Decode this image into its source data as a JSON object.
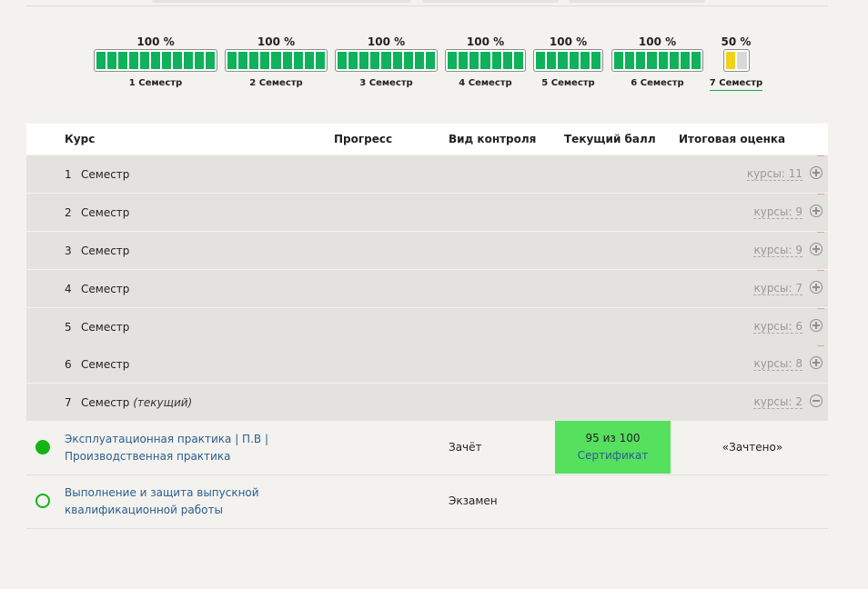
{
  "semesters": [
    {
      "pct": "100 %",
      "label": "1 Семестр",
      "segments": 11,
      "filled": 11,
      "half": 0
    },
    {
      "pct": "100 %",
      "label": "2 Семестр",
      "segments": 9,
      "filled": 9,
      "half": 0
    },
    {
      "pct": "100 %",
      "label": "3 Семестр",
      "segments": 9,
      "filled": 9,
      "half": 0
    },
    {
      "pct": "100 %",
      "label": "4 Семестр",
      "segments": 7,
      "filled": 7,
      "half": 0
    },
    {
      "pct": "100 %",
      "label": "5 Семестр",
      "segments": 6,
      "filled": 6,
      "half": 0
    },
    {
      "pct": "100 %",
      "label": "6 Семестр",
      "segments": 8,
      "filled": 8,
      "half": 0
    },
    {
      "pct": "50 %",
      "label": "7 Семестр",
      "segments": 2,
      "filled": 0,
      "half": 1
    }
  ],
  "table": {
    "headers": {
      "course": "Курс",
      "progress": "Прогресс",
      "control": "Вид контроля",
      "score": "Текущий балл",
      "final": "Итоговая оценка"
    },
    "semester_rows": [
      {
        "num": "1",
        "name": "Семестр",
        "current": "",
        "courses": "курсы: 11"
      },
      {
        "num": "2",
        "name": "Семестр",
        "current": "",
        "courses": "курсы: 9"
      },
      {
        "num": "3",
        "name": "Семестр",
        "current": "",
        "courses": "курсы: 9"
      },
      {
        "num": "4",
        "name": "Семестр",
        "current": "",
        "courses": "курсы: 7"
      },
      {
        "num": "5",
        "name": "Семестр",
        "current": "",
        "courses": "курсы: 6"
      },
      {
        "num": "6",
        "name": "Семестр",
        "current": "",
        "courses": "курсы: 8"
      },
      {
        "num": "7",
        "name": "Семестр",
        "current": "(текущий)",
        "courses": "курсы: 2"
      }
    ],
    "courses": [
      {
        "title": "Эксплуатационная практика | П.В | Производственная практика",
        "control": "Зачёт",
        "score": "95 из 100",
        "certificate": "Сертификат",
        "final": "«Зачтено»"
      },
      {
        "title": "Выполнение и защита выпускной квалификационной работы",
        "control": "Экзамен",
        "score": "",
        "certificate": "",
        "final": ""
      }
    ]
  }
}
